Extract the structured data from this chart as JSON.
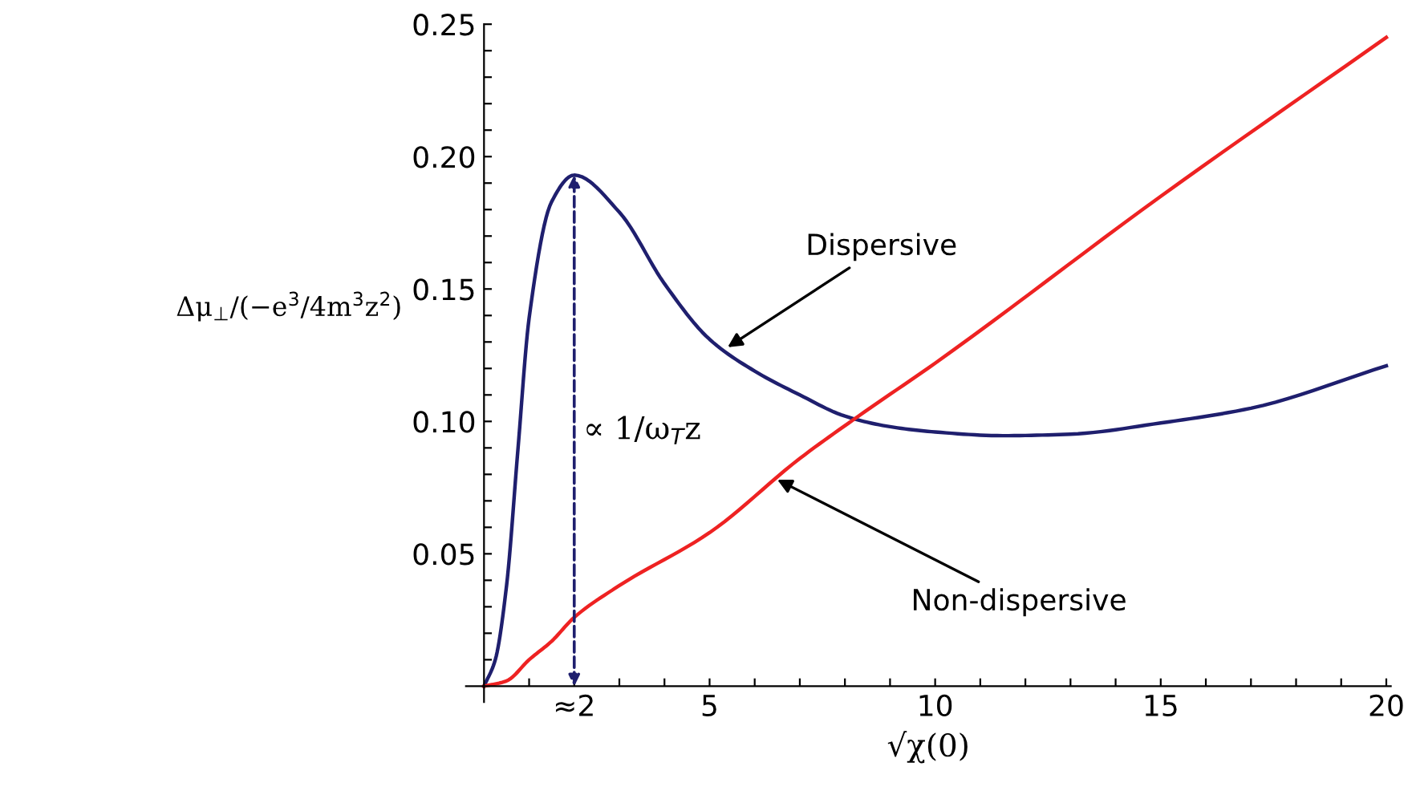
{
  "chart_data": {
    "type": "line",
    "xlabel": "√χ(0)",
    "ylabel": "Δμ$_{⊥}$/(−e$^{3}$/4m$^{3}$z$^{2}$)",
    "xlim": [
      -0.4,
      20.1
    ],
    "ylim": [
      -0.006,
      0.25
    ],
    "xticks": [
      {
        "value": 1,
        "label": null
      },
      {
        "value": 2,
        "label": "≈2"
      },
      {
        "value": 3,
        "label": null
      },
      {
        "value": 4,
        "label": null
      },
      5,
      {
        "value": 6,
        "label": null
      },
      {
        "value": 7,
        "label": null
      },
      {
        "value": 8,
        "label": null
      },
      {
        "value": 9,
        "label": null
      },
      10,
      {
        "value": 11,
        "label": null
      },
      {
        "value": 12,
        "label": null
      },
      {
        "value": 13,
        "label": null
      },
      {
        "value": 14,
        "label": null
      },
      15,
      {
        "value": 16,
        "label": null
      },
      {
        "value": 17,
        "label": null
      },
      {
        "value": 18,
        "label": null
      },
      {
        "value": 19,
        "label": null
      },
      20
    ],
    "yticks": [
      {
        "value": 0.01,
        "label": null
      },
      {
        "value": 0.02,
        "label": null
      },
      {
        "value": 0.03,
        "label": null
      },
      {
        "value": 0.04,
        "label": null
      },
      0.05,
      {
        "value": 0.06,
        "label": null
      },
      {
        "value": 0.07,
        "label": null
      },
      {
        "value": 0.08,
        "label": null
      },
      {
        "value": 0.09,
        "label": null
      },
      {
        "value": 0.1,
        "label": "0.10"
      },
      {
        "value": 0.11,
        "label": null
      },
      {
        "value": 0.12,
        "label": null
      },
      {
        "value": 0.13,
        "label": null
      },
      {
        "value": 0.14,
        "label": null
      },
      0.15,
      {
        "value": 0.16,
        "label": null
      },
      {
        "value": 0.17,
        "label": null
      },
      {
        "value": 0.18,
        "label": null
      },
      {
        "value": 0.19,
        "label": null
      },
      {
        "value": 0.2,
        "label": "0.20"
      },
      {
        "value": 0.21,
        "label": null
      },
      {
        "value": 0.22,
        "label": null
      },
      {
        "value": 0.23,
        "label": null
      },
      {
        "value": 0.24,
        "label": null
      },
      0.25
    ],
    "grid": false,
    "legend": false,
    "marker": "none",
    "line_style": "solid",
    "series": [
      {
        "color": "#1f1f6e",
        "x": [
          0,
          0.25,
          0.5,
          0.75,
          1,
          1.5,
          2,
          3,
          4,
          5,
          6,
          7,
          8,
          9,
          10,
          11.5,
          13,
          15,
          17,
          20
        ],
        "values": [
          0,
          0.01,
          0.038,
          0.089,
          0.139,
          0.183,
          0.193,
          0.179,
          0.152,
          0.131,
          0.119,
          0.11,
          0.102,
          0.098,
          0.096,
          0.0946,
          0.0952,
          0.0994,
          0.105,
          0.121
        ]
      },
      {
        "color": "#ee2222",
        "x": [
          0,
          0.5,
          1,
          1.5,
          2,
          3,
          5,
          7,
          8.3,
          10,
          15,
          20
        ],
        "values": [
          0,
          0.002,
          0.01,
          0.017,
          0.026,
          0.038,
          0.058,
          0.086,
          0.102,
          0.122,
          0.185,
          0.245
        ]
      }
    ],
    "annotations": [
      {
        "text": "Dispersive",
        "x": 5.4,
        "y": 0.128
      },
      {
        "text": "Non-dispersive",
        "x": 6.5,
        "y": 0.078
      },
      "∝ 1/ω$_{T}$z"
    ]
  }
}
